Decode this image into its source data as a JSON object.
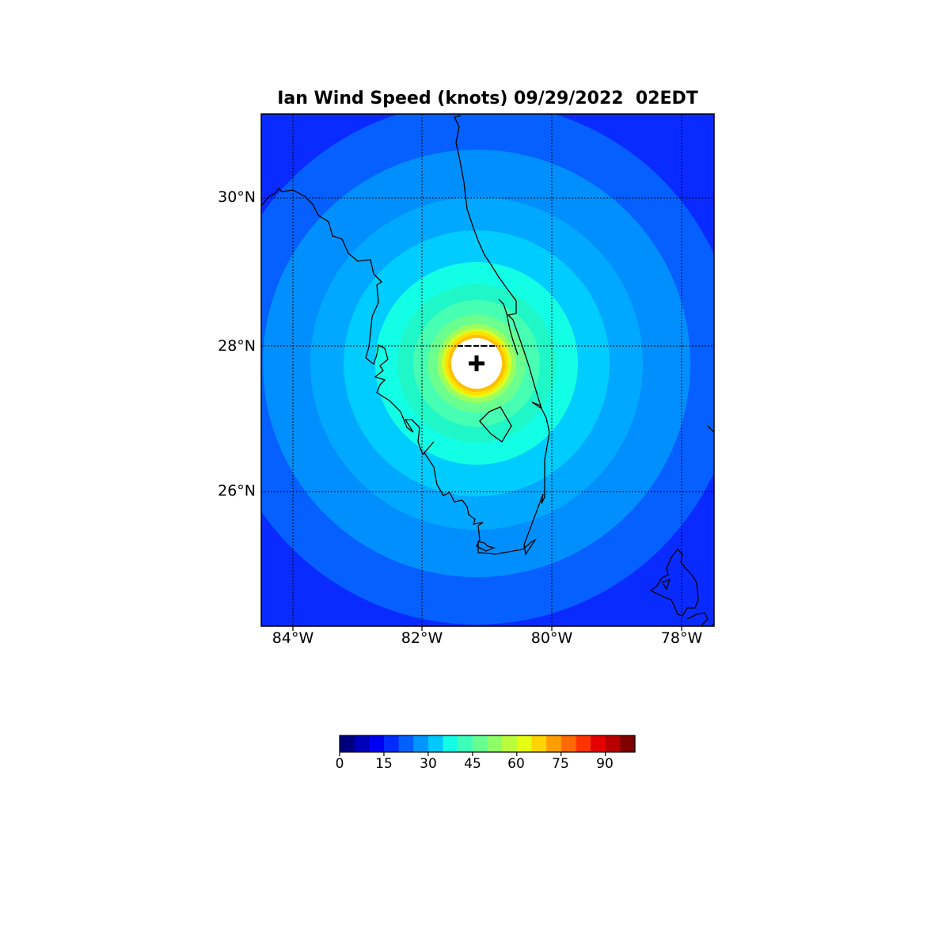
{
  "title": "Ian Wind Speed (knots) 09/29/2022  02EDT",
  "map": {
    "storm_center": {
      "lon": -81.1,
      "lat": 27.75
    },
    "latitude_labels": [
      "30°N",
      "28°N",
      "26°N"
    ],
    "longitude_labels": [
      "84°W",
      "82°W",
      "80°W",
      "78°W"
    ],
    "center_marker": "plus-marker"
  },
  "colorbar": {
    "min": 0,
    "max": 100,
    "tick_labels": [
      "0",
      "15",
      "30",
      "45",
      "60",
      "75",
      "90"
    ],
    "colors": [
      "#00007f",
      "#0000b8",
      "#0000f1",
      "#002cff",
      "#0060ff",
      "#0094ff",
      "#00c8ff",
      "#12ffe5",
      "#3dffba",
      "#67ff90",
      "#90ff67",
      "#baff3d",
      "#e5ff12",
      "#ffd300",
      "#ff9e00",
      "#ff6a00",
      "#ff3500",
      "#e50000",
      "#b80000",
      "#7f0000"
    ]
  },
  "contour_colors": {
    "outer": "#0a2bff",
    "band_20": "#0560ff",
    "band_25": "#028ffe",
    "band_30": "#00a8ff",
    "band_35": "#00ccff",
    "band_40": "#12ffe5",
    "band_45": "#20f7c8",
    "band_50": "#46ffb3",
    "band_55": "#6aff8e",
    "band_60": "#9aff60",
    "band_65": "#d8ff24",
    "band_70": "#ffe000",
    "band_75": "#ffc000",
    "eye": "#ffffff"
  }
}
